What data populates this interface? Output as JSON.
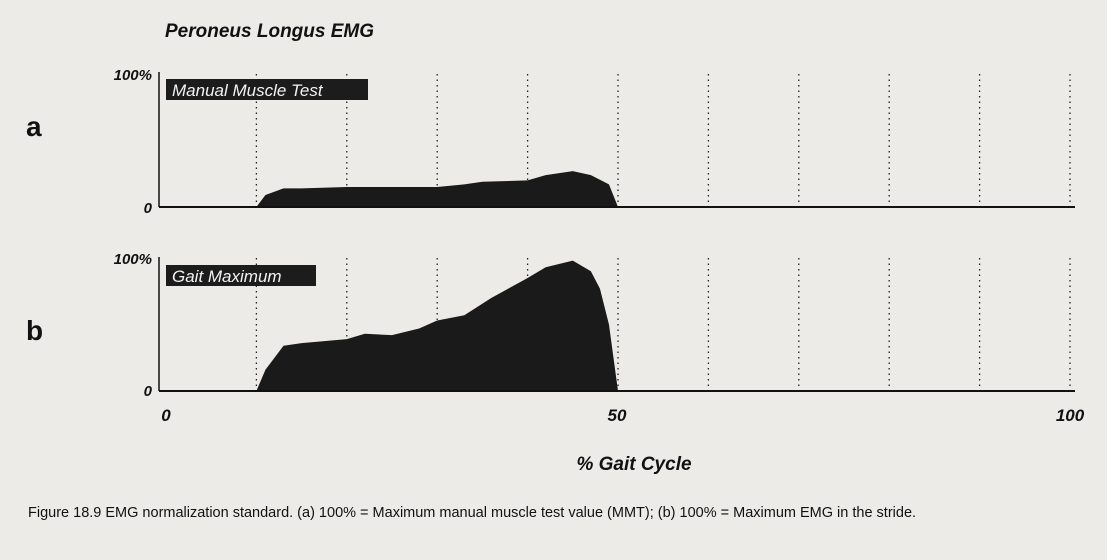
{
  "chart_data": [
    {
      "type": "area",
      "panel": "a",
      "title": "Peroneus Longus EMG",
      "label_box": "Manual Muscle Test",
      "ylim": [
        0,
        100
      ],
      "y_ticks": [
        "0",
        "100%"
      ],
      "xlim": [
        0,
        100
      ],
      "x": [
        0,
        10,
        11,
        13,
        15,
        20,
        25,
        30,
        33,
        35,
        40,
        42,
        45,
        47,
        49,
        50,
        100
      ],
      "y": [
        0,
        0,
        9,
        14,
        14,
        15,
        15,
        15,
        17,
        19,
        20,
        24,
        27,
        24,
        17,
        0,
        0
      ]
    },
    {
      "type": "area",
      "panel": "b",
      "label_box": "Gait Maximum",
      "ylim": [
        0,
        100
      ],
      "y_ticks": [
        "0",
        "100%"
      ],
      "xlim": [
        0,
        100
      ],
      "x": [
        0,
        10,
        11,
        13,
        15,
        20,
        22,
        25,
        28,
        30,
        33,
        36,
        40,
        42,
        45,
        47,
        48,
        49,
        50,
        100
      ],
      "y": [
        0,
        0,
        16,
        34,
        36,
        39,
        43,
        42,
        47,
        53,
        57,
        70,
        85,
        93,
        98,
        90,
        77,
        50,
        0,
        0
      ],
      "x_ticks": [
        "0",
        "50",
        "100"
      ],
      "xlabel": "% Gait Cycle"
    }
  ],
  "caption": {
    "text": "Figure 18.9 EMG normalization standard. (a) 100% = Maximum manual muscle test value (MMT); (b) 100% = Maximum EMG in the stride."
  }
}
